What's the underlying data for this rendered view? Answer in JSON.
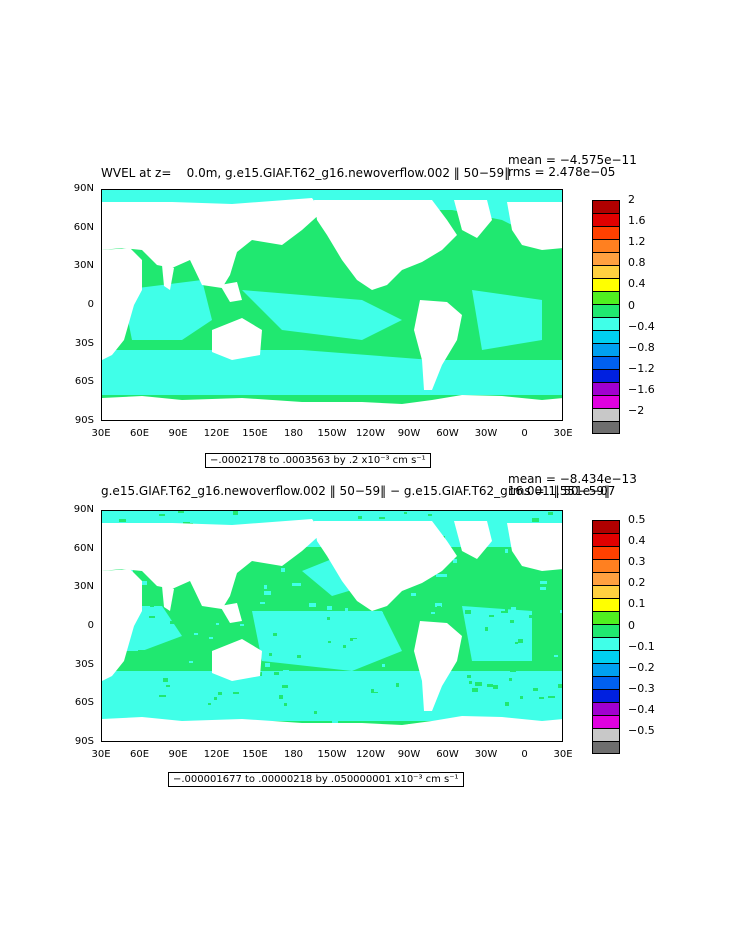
{
  "colors": {
    "palette": [
      "#6e6e6e",
      "#c8c8c8",
      "#e000e0",
      "#a000d0",
      "#0020e0",
      "#0060f0",
      "#00a0f0",
      "#00d0f0",
      "#40ffe8",
      "#20e870",
      "#50f020",
      "#ffff00",
      "#ffd040",
      "#ffa040",
      "#ff8020",
      "#ff4000",
      "#e00000",
      "#b00000"
    ],
    "ocean_main": "#20e870",
    "ocean_alt": "#40ffe8",
    "land": "#ffffff"
  },
  "panels": [
    {
      "title": "WVEL at z=    0.0m, g.e15.GIAF.T62_g16.newoverflow.002 ‖ 50−59‖",
      "mean_text": "mean = −4.575e−11",
      "rms_text": "rms = 2.478e−05",
      "range_text": "−.0002178 to .0003563 by .2 x10⁻³ cm s⁻¹",
      "yticks": [
        "90N",
        "60N",
        "30N",
        "0",
        "30S",
        "60S",
        "90S"
      ],
      "xticks": [
        "30E",
        "60E",
        "90E",
        "120E",
        "150E",
        "180",
        "150W",
        "120W",
        "90W",
        "60W",
        "30W",
        "0",
        "30E"
      ],
      "colorbar_labels": [
        "2",
        "1.6",
        "1.2",
        "0.8",
        "0.4",
        "0",
        "−0.4",
        "−0.8",
        "−1.2",
        "−1.6",
        "−2"
      ]
    },
    {
      "title": "g.e15.GIAF.T62_g16.newoverflow.002 ‖ 50−59‖ − g.e15.GIAF.T62_g16.001 ‖ 50−59‖",
      "mean_text": "mean = −8.434e−13",
      "rms_text": "rms = 1.551e−07",
      "range_text": "−.000001677 to .00000218 by .050000001 x10⁻³ cm s⁻¹",
      "yticks": [
        "90N",
        "60N",
        "30N",
        "0",
        "30S",
        "60S",
        "90S"
      ],
      "xticks": [
        "30E",
        "60E",
        "90E",
        "120E",
        "150E",
        "180",
        "150W",
        "120W",
        "90W",
        "60W",
        "30W",
        "0",
        "30E"
      ],
      "colorbar_labels": [
        "0.5",
        "0.4",
        "0.3",
        "0.2",
        "0.1",
        "0",
        "−0.1",
        "−0.2",
        "−0.3",
        "−0.4",
        "−0.5"
      ]
    }
  ]
}
